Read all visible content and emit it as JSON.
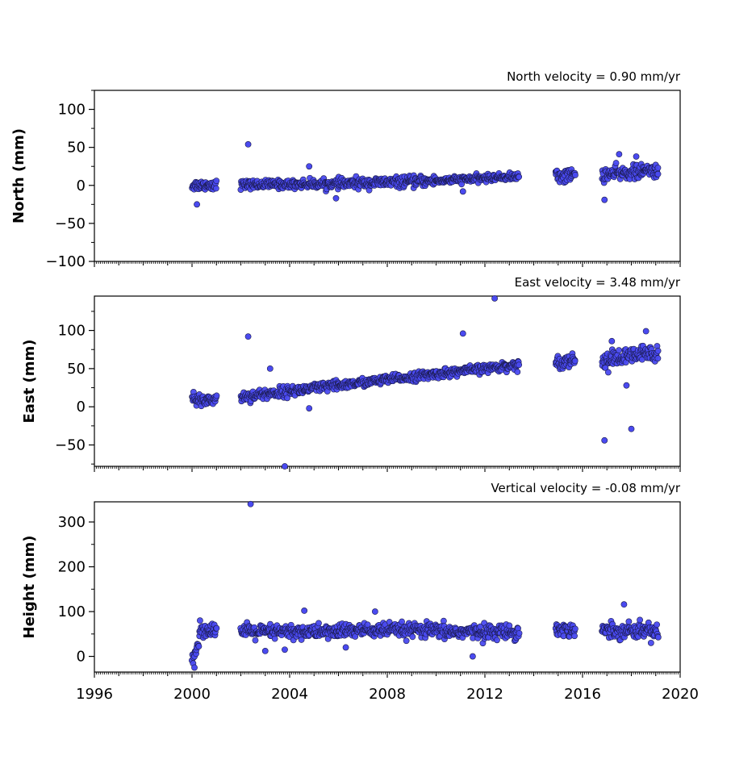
{
  "chart_data": [
    {
      "type": "scatter",
      "title": "North velocity = 0.90 mm/yr",
      "xlabel": "",
      "ylabel": "North (mm)",
      "xlim": [
        1996,
        2020
      ],
      "ylim": [
        -100,
        125
      ],
      "yticks": [
        -100,
        -50,
        0,
        50,
        100
      ],
      "marker_color": "#4a4af0",
      "marker_edge": "#1a1a4a",
      "segments": [
        {
          "x0": 2000.0,
          "x1": 2001.0,
          "y0": 0,
          "y1": 1,
          "spread": 6
        },
        {
          "x0": 2002.0,
          "x1": 2006.0,
          "y0": 1,
          "y1": 2,
          "spread": 5
        },
        {
          "x0": 2006.0,
          "x1": 2010.0,
          "y0": 2,
          "y1": 6,
          "spread": 6
        },
        {
          "x0": 2010.0,
          "x1": 2013.4,
          "y0": 6,
          "y1": 12,
          "spread": 4
        },
        {
          "x0": 2014.9,
          "x1": 2015.7,
          "y0": 12,
          "y1": 14,
          "spread": 8
        },
        {
          "x0": 2016.8,
          "x1": 2019.1,
          "y0": 14,
          "y1": 20,
          "spread": 8
        }
      ],
      "outliers": [
        {
          "x": 2000.2,
          "y": -25
        },
        {
          "x": 2002.3,
          "y": 54
        },
        {
          "x": 2005.9,
          "y": -17
        },
        {
          "x": 2004.8,
          "y": 25
        },
        {
          "x": 2011.1,
          "y": -8
        },
        {
          "x": 2016.9,
          "y": -19
        },
        {
          "x": 2017.5,
          "y": 41
        },
        {
          "x": 2018.2,
          "y": 38
        }
      ]
    },
    {
      "type": "scatter",
      "title": "East velocity = 3.48 mm/yr",
      "xlabel": "",
      "ylabel": "East (mm)",
      "xlim": [
        1996,
        2020
      ],
      "ylim": [
        -78,
        145
      ],
      "yticks": [
        -50,
        0,
        50,
        100
      ],
      "marker_color": "#4a4af0",
      "marker_edge": "#1a1a4a",
      "segments": [
        {
          "x0": 2000.0,
          "x1": 2001.0,
          "y0": 8,
          "y1": 10,
          "spread": 8
        },
        {
          "x0": 2002.0,
          "x1": 2006.0,
          "y0": 13,
          "y1": 28,
          "spread": 6
        },
        {
          "x0": 2006.0,
          "x1": 2010.0,
          "y0": 28,
          "y1": 43,
          "spread": 5
        },
        {
          "x0": 2010.0,
          "x1": 2013.4,
          "y0": 43,
          "y1": 55,
          "spread": 5
        },
        {
          "x0": 2014.9,
          "x1": 2015.7,
          "y0": 58,
          "y1": 62,
          "spread": 8
        },
        {
          "x0": 2016.8,
          "x1": 2019.1,
          "y0": 60,
          "y1": 72,
          "spread": 10
        }
      ],
      "outliers": [
        {
          "x": 2002.3,
          "y": 92
        },
        {
          "x": 2003.2,
          "y": 50
        },
        {
          "x": 2003.8,
          "y": -78
        },
        {
          "x": 2004.8,
          "y": -2
        },
        {
          "x": 2011.1,
          "y": 96
        },
        {
          "x": 2012.4,
          "y": 142
        },
        {
          "x": 2016.9,
          "y": -44
        },
        {
          "x": 2018.0,
          "y": -29
        },
        {
          "x": 2018.6,
          "y": 99
        },
        {
          "x": 2017.8,
          "y": 28
        },
        {
          "x": 2017.2,
          "y": 86
        }
      ]
    },
    {
      "type": "scatter",
      "title": "Vertical velocity = -0.08 mm/yr",
      "xlabel": "",
      "ylabel": "Height (mm)",
      "xlim": [
        1996,
        2020
      ],
      "ylim": [
        -35,
        345
      ],
      "yticks": [
        0,
        100,
        200,
        300
      ],
      "xticks": [
        1996,
        2000,
        2004,
        2008,
        2012,
        2016,
        2020
      ],
      "marker_color": "#4a4af0",
      "marker_edge": "#1a1a4a",
      "segments": [
        {
          "x0": 2000.0,
          "x1": 2000.3,
          "y0": -5,
          "y1": 30,
          "spread": 12
        },
        {
          "x0": 2000.3,
          "x1": 2001.0,
          "y0": 60,
          "y1": 60,
          "spread": 14
        },
        {
          "x0": 2002.0,
          "x1": 2006.0,
          "y0": 55,
          "y1": 55,
          "spread": 14
        },
        {
          "x0": 2006.0,
          "x1": 2010.0,
          "y0": 58,
          "y1": 58,
          "spread": 14
        },
        {
          "x0": 2010.0,
          "x1": 2013.4,
          "y0": 55,
          "y1": 55,
          "spread": 14
        },
        {
          "x0": 2014.9,
          "x1": 2015.7,
          "y0": 60,
          "y1": 60,
          "spread": 15
        },
        {
          "x0": 2016.8,
          "x1": 2019.1,
          "y0": 58,
          "y1": 58,
          "spread": 15
        }
      ],
      "outliers": [
        {
          "x": 2002.4,
          "y": 340
        },
        {
          "x": 2003.0,
          "y": 12
        },
        {
          "x": 2003.8,
          "y": 15
        },
        {
          "x": 2006.3,
          "y": 20
        },
        {
          "x": 2011.5,
          "y": 0
        },
        {
          "x": 2004.6,
          "y": 102
        },
        {
          "x": 2007.5,
          "y": 100
        },
        {
          "x": 2017.7,
          "y": 116
        },
        {
          "x": 2000.1,
          "y": -25
        }
      ]
    }
  ]
}
